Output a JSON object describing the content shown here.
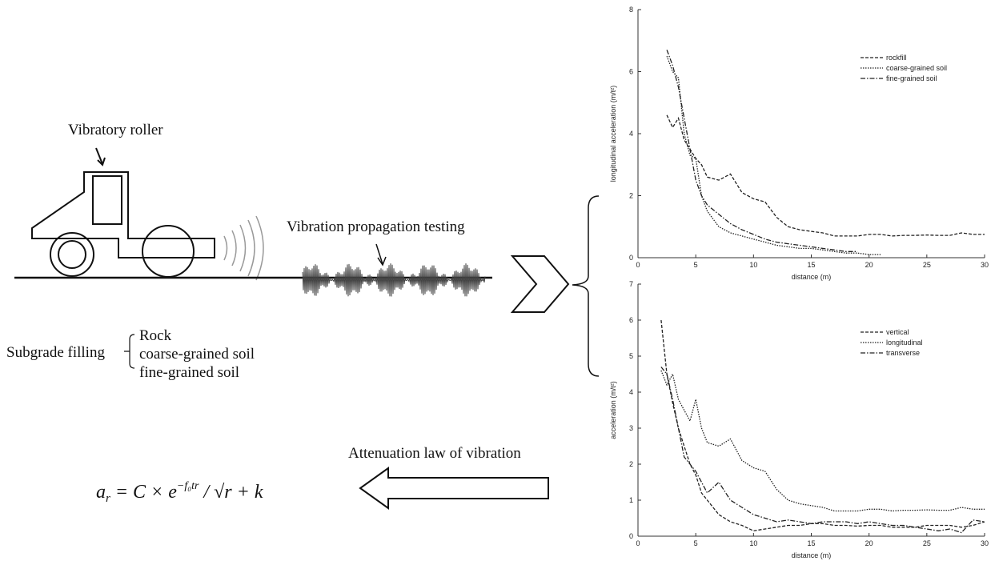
{
  "diagram": {
    "roller_label": "Vibratory roller",
    "testing_label": "Vibration propagation testing",
    "filling_label": "Subgrade filling",
    "filling_items": [
      "Rock",
      "coarse-grained soil",
      "fine-grained soil"
    ],
    "attenuation_label": "Attenuation law of vibration",
    "formula": {
      "lhs": "a",
      "lhs_sub": "r",
      "body": " = C × e",
      "exponent": "−f₀tr",
      "tail": " / √r + k"
    }
  },
  "chart_data": [
    {
      "type": "line",
      "xlabel": "distance (m)",
      "ylabel": "longitudinal acceleration (m/t²)",
      "x": [
        2.5,
        3,
        3.5,
        4,
        4.5,
        5,
        5.5,
        6,
        7,
        8,
        9,
        10,
        11,
        12,
        13,
        14,
        15,
        16,
        17,
        18,
        19,
        20,
        21,
        22,
        23,
        24,
        25,
        26,
        27,
        28,
        29,
        30
      ],
      "series": [
        {
          "name": "rockfill",
          "color": "#222222",
          "dash": "4,2",
          "values": [
            4.6,
            4.2,
            4.5,
            3.8,
            3.5,
            3.2,
            3.0,
            2.6,
            2.5,
            2.7,
            2.1,
            1.9,
            1.8,
            1.3,
            1.0,
            0.9,
            0.85,
            0.8,
            0.7,
            0.7,
            0.7,
            0.75,
            0.75,
            0.7,
            0.72,
            0.72,
            0.73,
            0.72,
            0.72,
            0.8,
            0.75,
            0.75
          ]
        },
        {
          "name": "coarse-grained soil",
          "color": "#222222",
          "dash": "1.5,1.5",
          "values": [
            6.5,
            6.0,
            5.8,
            4.0,
            3.3,
            3.2,
            2.0,
            1.5,
            1.0,
            0.8,
            0.7,
            0.6,
            0.5,
            0.4,
            0.35,
            0.3,
            0.3,
            0.25,
            0.2,
            0.15,
            0.15,
            0.1,
            0.1,
            null,
            null,
            null,
            null,
            null,
            null,
            null,
            null,
            null
          ]
        },
        {
          "name": "fine-grained soil",
          "color": "#222222",
          "dash": "6,2,1.5,2",
          "values": [
            6.7,
            6.2,
            5.5,
            4.5,
            3.5,
            2.5,
            2.0,
            1.7,
            1.4,
            1.1,
            0.9,
            0.75,
            0.6,
            0.5,
            0.45,
            0.4,
            0.35,
            0.3,
            0.25,
            0.2,
            0.2,
            null,
            null,
            null,
            null,
            null,
            null,
            null,
            null,
            null,
            null,
            null
          ]
        }
      ],
      "xlim": [
        0,
        30
      ],
      "xticks": [
        0,
        5,
        10,
        15,
        20,
        25,
        30
      ],
      "ylim": [
        0,
        8
      ],
      "yticks": [
        0,
        2,
        4,
        6,
        8
      ],
      "legend": "upper right",
      "grid": false
    },
    {
      "type": "line",
      "xlabel": "distance (m)",
      "ylabel": "acceleration (m/t²)",
      "x": [
        2,
        2.5,
        3,
        3.5,
        4,
        4.5,
        5,
        5.5,
        6,
        7,
        8,
        9,
        10,
        11,
        12,
        13,
        14,
        15,
        16,
        17,
        18,
        19,
        20,
        21,
        22,
        23,
        24,
        25,
        26,
        27,
        28,
        29,
        30
      ],
      "series": [
        {
          "name": "vertical",
          "color": "#222222",
          "dash": "4,2",
          "values": [
            6.0,
            4.5,
            3.7,
            3.0,
            2.5,
            2.0,
            1.7,
            1.2,
            1.0,
            0.6,
            0.4,
            0.3,
            0.15,
            0.2,
            0.25,
            0.3,
            0.3,
            0.35,
            0.35,
            0.3,
            0.3,
            0.28,
            0.3,
            0.3,
            0.25,
            0.25,
            0.25,
            0.3,
            0.3,
            0.3,
            0.25,
            0.3,
            0.4
          ]
        },
        {
          "name": "longitudinal",
          "color": "#222222",
          "dash": "1.5,1.5",
          "values": [
            4.6,
            4.2,
            4.5,
            3.8,
            3.5,
            3.2,
            3.8,
            3.0,
            2.6,
            2.5,
            2.7,
            2.1,
            1.9,
            1.8,
            1.3,
            1.0,
            0.9,
            0.85,
            0.8,
            0.7,
            0.7,
            0.7,
            0.75,
            0.75,
            0.7,
            0.72,
            0.72,
            0.73,
            0.72,
            0.72,
            0.8,
            0.75,
            0.75
          ]
        },
        {
          "name": "transverse",
          "color": "#222222",
          "dash": "6,2,1.5,2",
          "values": [
            4.7,
            4.5,
            3.8,
            3.0,
            2.2,
            2.0,
            1.8,
            1.5,
            1.2,
            1.5,
            1.0,
            0.8,
            0.6,
            0.5,
            0.4,
            0.45,
            0.4,
            0.35,
            0.4,
            0.4,
            0.4,
            0.35,
            0.4,
            0.35,
            0.3,
            0.3,
            0.25,
            0.2,
            0.15,
            0.2,
            0.1,
            0.45,
            0.4
          ]
        }
      ],
      "xlim": [
        0,
        30
      ],
      "xticks": [
        0,
        5,
        10,
        15,
        20,
        25,
        30
      ],
      "ylim": [
        0,
        7
      ],
      "yticks": [
        0,
        1,
        2,
        3,
        4,
        5,
        6,
        7
      ],
      "legend": "upper right",
      "grid": false
    }
  ]
}
